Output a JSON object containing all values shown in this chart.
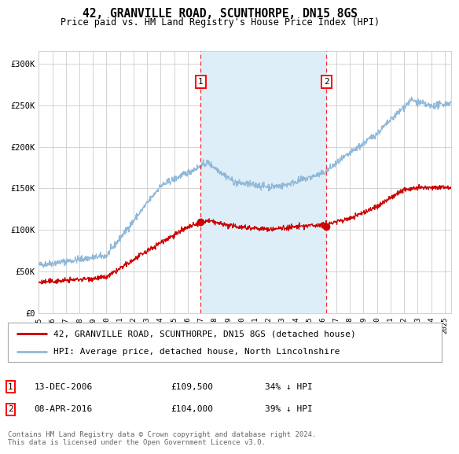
{
  "title": "42, GRANVILLE ROAD, SCUNTHORPE, DN15 8GS",
  "subtitle": "Price paid vs. HM Land Registry's House Price Index (HPI)",
  "title_fontsize": 10.5,
  "subtitle_fontsize": 8.5,
  "bg_color": "#ffffff",
  "plot_bg_color": "#ffffff",
  "grid_color": "#cccccc",
  "hpi_color": "#90b8d8",
  "price_color": "#cc0000",
  "shade_color": "#ddeef8",
  "ylabel_ticks": [
    "£0",
    "£50K",
    "£100K",
    "£150K",
    "£200K",
    "£250K",
    "£300K"
  ],
  "ytick_values": [
    0,
    50000,
    100000,
    150000,
    200000,
    250000,
    300000
  ],
  "ylim": [
    0,
    315000
  ],
  "xlim_start": 1995.0,
  "xlim_end": 2025.5,
  "purchase1_date": 2006.96,
  "purchase1_price": 109500,
  "purchase1_label": "1",
  "purchase2_date": 2016.27,
  "purchase2_price": 104000,
  "purchase2_label": "2",
  "legend_line1": "42, GRANVILLE ROAD, SCUNTHORPE, DN15 8GS (detached house)",
  "legend_line2": "HPI: Average price, detached house, North Lincolnshire",
  "table_row1": [
    "1",
    "13-DEC-2006",
    "£109,500",
    "34% ↓ HPI"
  ],
  "table_row2": [
    "2",
    "08-APR-2016",
    "£104,000",
    "39% ↓ HPI"
  ],
  "footnote": "Contains HM Land Registry data © Crown copyright and database right 2024.\nThis data is licensed under the Open Government Licence v3.0.",
  "footnote_fontsize": 6.5,
  "legend_fontsize": 8,
  "table_fontsize": 8,
  "ytick_fontsize": 7.5,
  "xtick_fontsize": 6.5
}
